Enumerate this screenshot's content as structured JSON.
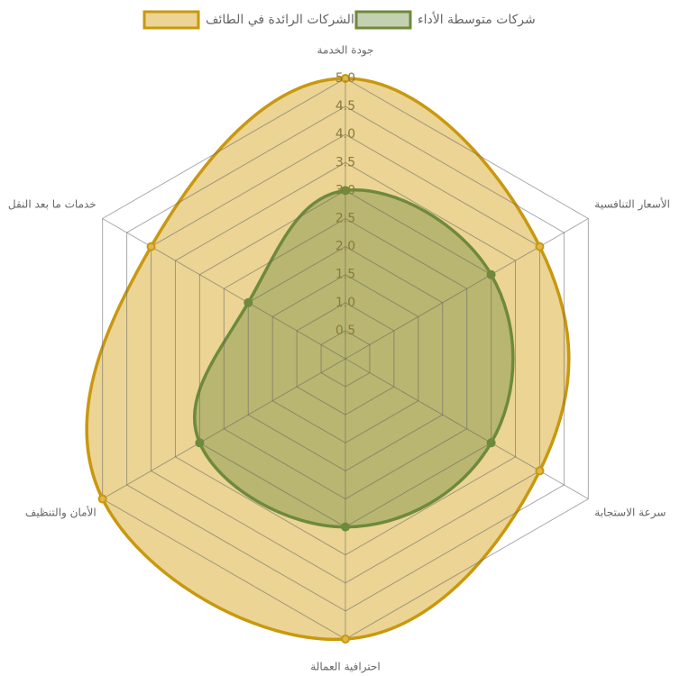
{
  "chart_data": {
    "type": "radar",
    "categories": [
      "جودة الخدمة",
      "الأسعار التنافسية",
      "سرعة الاستجابة",
      "احترافية العمالة",
      "الأمان والتنظيف",
      "خدمات ما بعد النقل"
    ],
    "series": [
      {
        "name": "الشركات الرائدة في الطائف",
        "color": "#c9980e",
        "fill": "rgba(222,184,76,0.6)",
        "values": [
          5,
          4,
          4,
          5,
          5,
          4
        ]
      },
      {
        "name": "شركات متوسطة الأداء",
        "color": "#6e8a3c",
        "fill": "rgba(110,138,60,0.4)",
        "values": [
          3,
          3,
          3,
          3,
          3,
          2
        ]
      }
    ],
    "ylim": [
      0,
      5
    ],
    "yticks": [
      0.5,
      {
        "value": 1,
        "label": "1.0"
      },
      1.5,
      {
        "value": 2,
        "label": "2.0"
      },
      2.5,
      {
        "value": 3,
        "label": "3.0"
      },
      3.5,
      {
        "value": 4,
        "label": "4.0"
      },
      4.5,
      {
        "value": 5,
        "label": "5.0"
      }
    ],
    "grid": true,
    "legend": "top",
    "smooth": true
  }
}
